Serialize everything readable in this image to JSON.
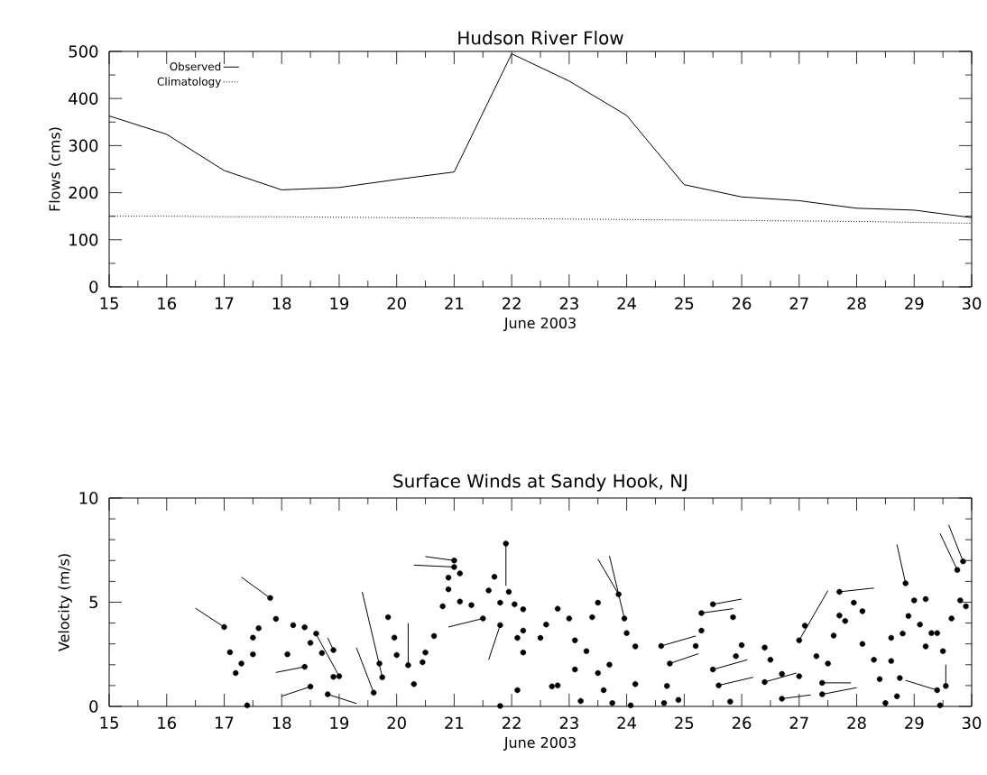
{
  "chart_data": [
    {
      "type": "line",
      "title": "Hudson River Flow",
      "xlabel": "June 2003",
      "ylabel": "Flows  (cms)",
      "x": [
        15,
        16,
        17,
        18,
        19,
        20,
        21,
        22,
        23,
        24,
        25,
        26,
        27,
        28,
        29,
        30
      ],
      "series": [
        {
          "name": "Observed",
          "color": "#000000",
          "line_style": "solid",
          "values": [
            363,
            324,
            247,
            206,
            211,
            228,
            244,
            495,
            437,
            364,
            217,
            191,
            183,
            167,
            163,
            147
          ]
        },
        {
          "name": "Climatology",
          "color": "#000000",
          "line_style": "dotted",
          "values": [
            150,
            150,
            149,
            149,
            148,
            147,
            146,
            145,
            144,
            143,
            142,
            141,
            140,
            139,
            137,
            135
          ]
        }
      ],
      "xlim": [
        15,
        30
      ],
      "ylim": [
        0,
        500
      ],
      "xticks": [
        15,
        16,
        17,
        18,
        19,
        20,
        21,
        22,
        23,
        24,
        25,
        26,
        27,
        28,
        29,
        30
      ],
      "yticks": [
        0,
        100,
        200,
        300,
        400,
        500
      ],
      "legend": "top left"
    },
    {
      "type": "scatter",
      "title": "Surface Winds at Sandy Hook, NJ",
      "xlabel": "June 2003",
      "ylabel": "Velocity (m/s)",
      "series": [
        {
          "type": "scatter",
          "color": "#000000",
          "marker": "circle",
          "x": [
            17.0,
            17.2,
            17.1,
            17.3,
            17.5,
            17.5,
            17.4,
            17.6,
            17.8,
            17.9,
            18.1,
            18.2,
            18.4,
            18.5,
            18.4,
            18.5,
            18.6,
            18.7,
            18.9,
            18.9,
            19.0,
            18.8,
            19.6,
            19.75,
            19.7,
            19.85,
            19.96,
            20.0,
            20.2,
            20.3,
            20.65,
            20.5,
            20.45,
            21.0,
            21.0,
            21.1,
            20.9,
            20.9,
            21.1,
            21.3,
            21.6,
            21.5,
            20.8,
            21.7,
            21.9,
            21.95,
            21.8,
            22.05,
            22.2,
            21.8,
            22.1,
            21.8,
            22.1,
            22.2,
            22.2,
            22.5,
            22.6,
            22.8,
            22.7,
            22.8,
            23.0,
            23.1,
            23.1,
            23.2,
            23.3,
            23.4,
            23.5,
            23.5,
            23.6,
            23.7,
            23.75,
            23.86,
            23.96,
            24.0,
            24.15,
            24.15,
            24.07,
            24.6,
            24.75,
            24.7,
            24.65,
            24.9,
            25.2,
            25.3,
            25.5,
            25.3,
            25.5,
            25.6,
            25.85,
            25.8,
            26.0,
            25.9,
            26.4,
            26.4,
            26.7,
            26.7,
            26.5,
            27.0,
            27.0,
            27.1,
            27.4,
            27.4,
            27.3,
            27.5,
            27.7,
            27.7,
            27.8,
            27.95,
            28.1,
            27.6,
            28.1,
            28.3,
            28.5,
            28.4,
            28.6,
            28.7,
            28.75,
            28.6,
            28.8,
            28.9,
            28.85,
            29.1,
            29.2,
            29.0,
            29.2,
            29.3,
            29.4,
            29.5,
            29.4,
            29.55,
            29.45,
            29.65,
            29.75,
            29.8,
            29.85,
            29.9
          ],
          "values": [
            3.81,
            1.6,
            2.6,
            2.06,
            2.5,
            3.3,
            0.05,
            3.75,
            5.2,
            4.2,
            2.5,
            3.9,
            3.8,
            0.95,
            1.9,
            3.05,
            3.5,
            2.56,
            2.7,
            1.42,
            1.45,
            0.58,
            0.66,
            1.4,
            2.06,
            4.28,
            3.3,
            2.47,
            1.98,
            1.07,
            3.38,
            2.59,
            2.12,
            7.0,
            6.69,
            6.38,
            6.18,
            5.62,
            5.03,
            4.86,
            5.56,
            4.22,
            4.8,
            6.22,
            7.81,
            5.5,
            4.98,
            4.9,
            4.66,
            3.9,
            0.78,
            0.02,
            3.29,
            3.64,
            2.59,
            3.29,
            3.93,
            4.69,
            0.96,
            1.01,
            4.22,
            3.17,
            1.77,
            0.26,
            2.65,
            4.28,
            4.98,
            1.6,
            0.78,
            2.0,
            0.16,
            5.38,
            4.22,
            3.52,
            2.88,
            1.07,
            0.05,
            2.9,
            2.06,
            0.98,
            0.16,
            0.31,
            2.9,
            4.48,
            4.9,
            3.64,
            1.77,
            1.01,
            4.28,
            0.23,
            2.94,
            2.41,
            1.17,
            2.82,
            0.37,
            1.56,
            2.24,
            3.17,
            1.45,
            3.87,
            0.58,
            1.13,
            2.41,
            2.06,
            5.5,
            4.36,
            4.1,
            4.98,
            4.57,
            3.4,
            3.0,
            2.24,
            0.16,
            1.31,
            2.18,
            0.49,
            1.36,
            3.29,
            3.5,
            4.34,
            5.91,
            3.93,
            5.15,
            5.09,
            2.88,
            3.52,
            3.52,
            2.65,
            0.78,
            0.98,
            0.05,
            4.22,
            6.55,
            5.09,
            6.96,
            4.8
          ]
        },
        {
          "type": "line",
          "color": "#000000",
          "x": [
            17.0,
            16.5,
            null,
            18.5,
            18.0,
            null,
            18.4,
            17.9,
            null,
            18.9,
            18.8,
            null,
            19.0,
            18.6,
            null,
            19.6,
            19.3,
            null,
            19.75,
            19.4,
            null,
            20.2,
            20.2,
            null,
            21.0,
            20.5,
            null,
            21.0,
            20.3,
            null,
            21.9,
            21.9,
            null,
            21.8,
            21.6,
            null,
            21.5,
            20.9,
            null,
            17.8,
            17.3,
            null,
            18.8,
            19.3,
            null,
            23.86,
            23.5,
            null,
            23.96,
            23.7,
            null,
            24.6,
            25.2,
            null,
            24.75,
            25.25,
            null,
            25.5,
            26.0,
            null,
            25.3,
            25.85,
            null,
            25.5,
            26.1,
            null,
            25.6,
            26.2,
            null,
            26.4,
            26.95,
            null,
            26.7,
            27.2,
            null,
            27.4,
            28.0,
            null,
            27.7,
            28.3,
            null,
            27.4,
            27.9,
            null,
            28.85,
            28.7,
            null,
            29.85,
            29.6,
            null,
            29.75,
            29.45,
            null,
            29.4,
            28.85,
            null,
            29.55,
            29.55,
            null,
            27.0,
            27.5
          ],
          "values": [
            3.81,
            4.71,
            null,
            0.95,
            0.49,
            null,
            1.9,
            1.63,
            null,
            2.7,
            3.29,
            null,
            1.45,
            3.46,
            null,
            0.66,
            2.82,
            null,
            1.4,
            5.5,
            null,
            1.98,
            3.99,
            null,
            7.0,
            7.19,
            null,
            6.69,
            6.78,
            null,
            7.81,
            5.79,
            null,
            3.9,
            2.24,
            null,
            4.22,
            3.81,
            null,
            5.2,
            6.2,
            null,
            0.58,
            0.14,
            null,
            5.38,
            7.07,
            null,
            4.22,
            7.23,
            null,
            2.9,
            3.38,
            null,
            2.06,
            2.53,
            null,
            4.9,
            5.15,
            null,
            4.48,
            4.69,
            null,
            1.77,
            2.24,
            null,
            1.01,
            1.4,
            null,
            1.17,
            1.6,
            null,
            0.37,
            0.55,
            null,
            0.58,
            0.9,
            null,
            5.5,
            5.68,
            null,
            1.13,
            1.13,
            null,
            5.91,
            7.77,
            null,
            6.96,
            8.71,
            null,
            6.55,
            8.3,
            null,
            0.78,
            1.25,
            null,
            0.98,
            2.0,
            null,
            3.17,
            5.56
          ]
        }
      ],
      "xlim": [
        15,
        30
      ],
      "ylim": [
        0,
        10
      ],
      "xticks": [
        15,
        16,
        17,
        18,
        19,
        20,
        21,
        22,
        23,
        24,
        25,
        26,
        27,
        28,
        29,
        30
      ],
      "yticks": [
        0,
        5,
        10
      ]
    }
  ]
}
